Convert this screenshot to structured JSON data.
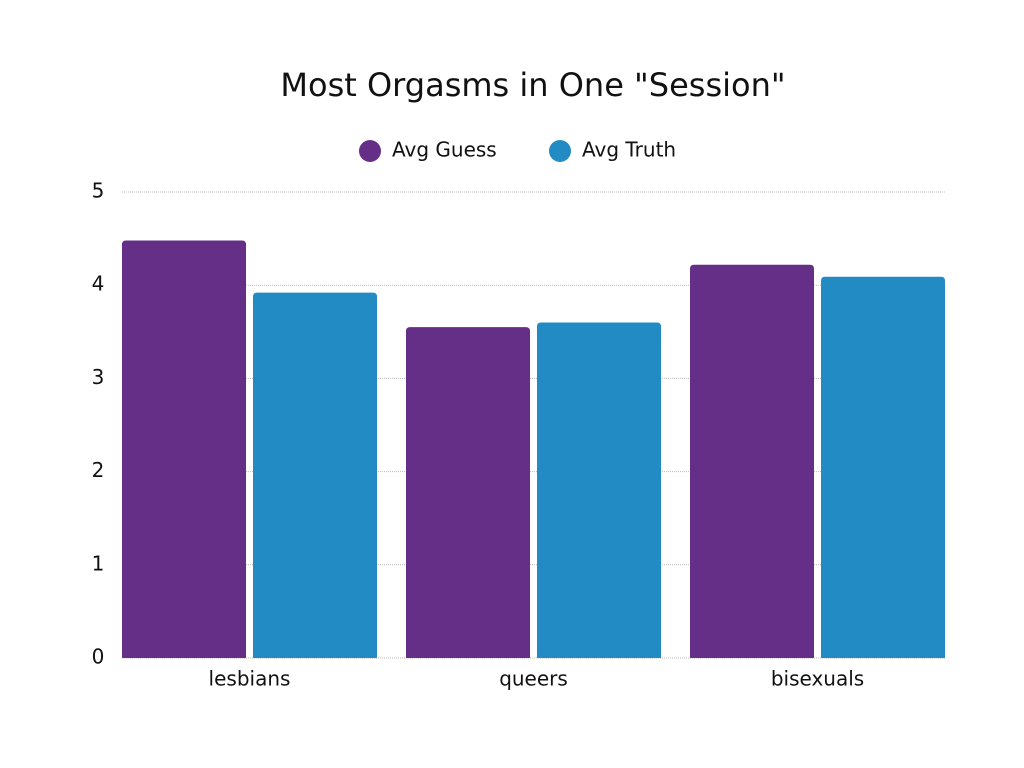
{
  "chart_data": {
    "type": "bar",
    "title": "Most Orgasms in One \"Session\"",
    "categories": [
      "lesbians",
      "queers",
      "bisexuals"
    ],
    "series": [
      {
        "name": "Avg Guess",
        "color": "#652f87",
        "values": [
          4.48,
          3.55,
          4.22
        ]
      },
      {
        "name": "Avg Truth",
        "color": "#238bc4",
        "values": [
          3.92,
          3.6,
          4.09
        ]
      }
    ],
    "ylim": [
      0,
      5
    ],
    "yticks": [
      0,
      1,
      2,
      3,
      4,
      5
    ],
    "grid": true,
    "legend": "top"
  }
}
